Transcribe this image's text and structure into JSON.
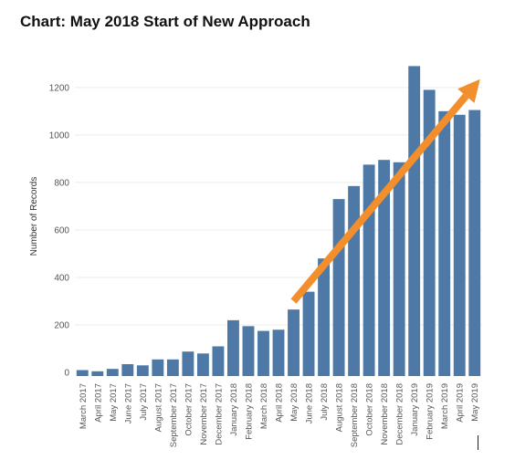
{
  "page": {
    "title": "Chart: May 2018 Start of New Approach"
  },
  "chart_data": {
    "type": "bar",
    "title": "Chart: May 2018 Start of New Approach",
    "xlabel": "",
    "ylabel": "Number of Records",
    "ylim": [
      -15,
      1330
    ],
    "yticks": [
      0,
      200,
      400,
      600,
      800,
      1000,
      1200
    ],
    "grid": true,
    "legend": "none",
    "categories": [
      "March 2017",
      "April 2017",
      "May 2017",
      "June 2017",
      "July 2017",
      "August 2017",
      "September 2017",
      "October 2017",
      "November 2017",
      "December 2017",
      "January 2018",
      "February 2018",
      "March 2018",
      "April 2018",
      "May 2018",
      "June 2018",
      "July 2018",
      "August 2018",
      "September 2018",
      "October 2018",
      "November 2018",
      "December 2018",
      "January 2019",
      "February 2019",
      "March 2019",
      "April 2019",
      "May 2019"
    ],
    "values": [
      10,
      5,
      15,
      35,
      30,
      55,
      55,
      88,
      80,
      110,
      220,
      195,
      175,
      180,
      265,
      340,
      480,
      730,
      785,
      875,
      895,
      885,
      1290,
      1190,
      1100,
      1085,
      1105
    ],
    "annotation": {
      "type": "trend-arrow",
      "from": {
        "x": "May 2018",
        "y": 300
      },
      "to": {
        "x": "May 2019",
        "y": 1235
      }
    },
    "colors": {
      "bar": "#4e79a7",
      "arrow": "#f28e2b",
      "grid": "#ececec",
      "text": "#555555"
    }
  }
}
